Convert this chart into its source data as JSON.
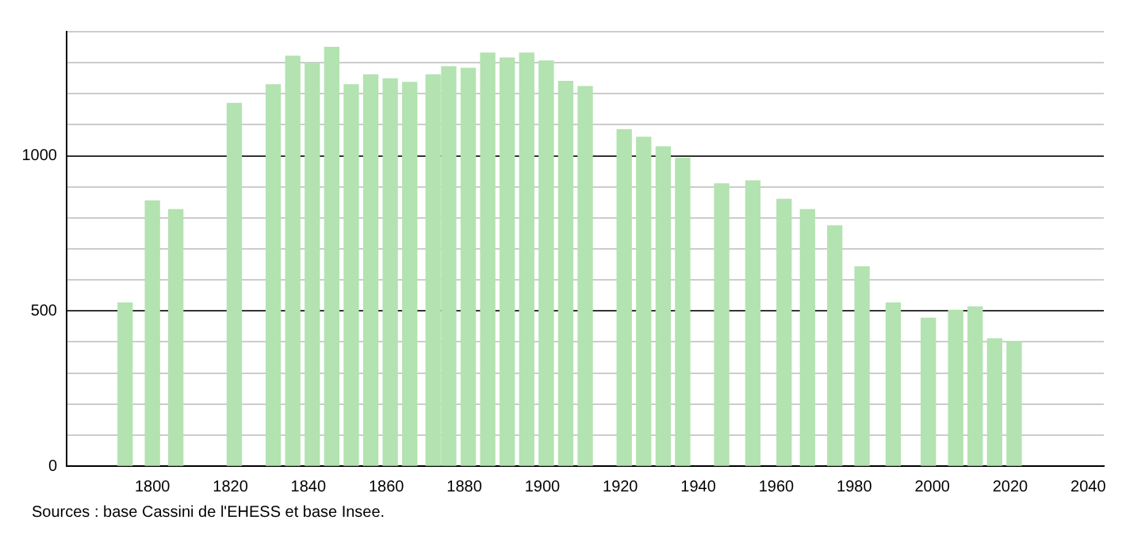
{
  "chart_data": {
    "type": "bar",
    "x": [
      1793,
      1800,
      1806,
      1821,
      1831,
      1836,
      1841,
      1846,
      1851,
      1856,
      1861,
      1866,
      1872,
      1876,
      1881,
      1886,
      1891,
      1896,
      1901,
      1906,
      1911,
      1921,
      1926,
      1931,
      1936,
      1946,
      1954,
      1962,
      1968,
      1975,
      1982,
      1990,
      1999,
      2006,
      2011,
      2016,
      2021
    ],
    "values": [
      526,
      855,
      827,
      1169,
      1229,
      1321,
      1298,
      1350,
      1229,
      1261,
      1248,
      1237,
      1261,
      1287,
      1282,
      1331,
      1315,
      1331,
      1306,
      1240,
      1223,
      1084,
      1060,
      1029,
      992,
      910,
      919,
      860,
      827,
      774,
      642,
      526,
      477,
      502,
      513,
      410,
      402
    ],
    "color": "#b3e3b0",
    "xlim": [
      1778,
      2044
    ],
    "xticks": [
      1800,
      1820,
      1840,
      1860,
      1880,
      1900,
      1920,
      1940,
      1960,
      1980,
      2000,
      2020,
      2040
    ],
    "ylim": [
      0,
      1400
    ],
    "yticks": [
      0,
      {
        "value": 100,
        "label": null
      },
      {
        "value": 200,
        "label": null
      },
      {
        "value": 300,
        "label": null
      },
      {
        "value": 400,
        "label": null
      },
      500,
      {
        "value": 600,
        "label": null
      },
      {
        "value": 700,
        "label": null
      },
      {
        "value": 800,
        "label": null
      },
      {
        "value": 900,
        "label": null
      },
      1000,
      {
        "value": 1100,
        "label": null
      },
      {
        "value": 1200,
        "label": null
      },
      {
        "value": 1300,
        "label": null
      },
      {
        "value": 1400,
        "label": null
      }
    ],
    "grid": "y",
    "annotations": [
      "Sources : base Cassini de l'EHESS et base Insee."
    ]
  }
}
